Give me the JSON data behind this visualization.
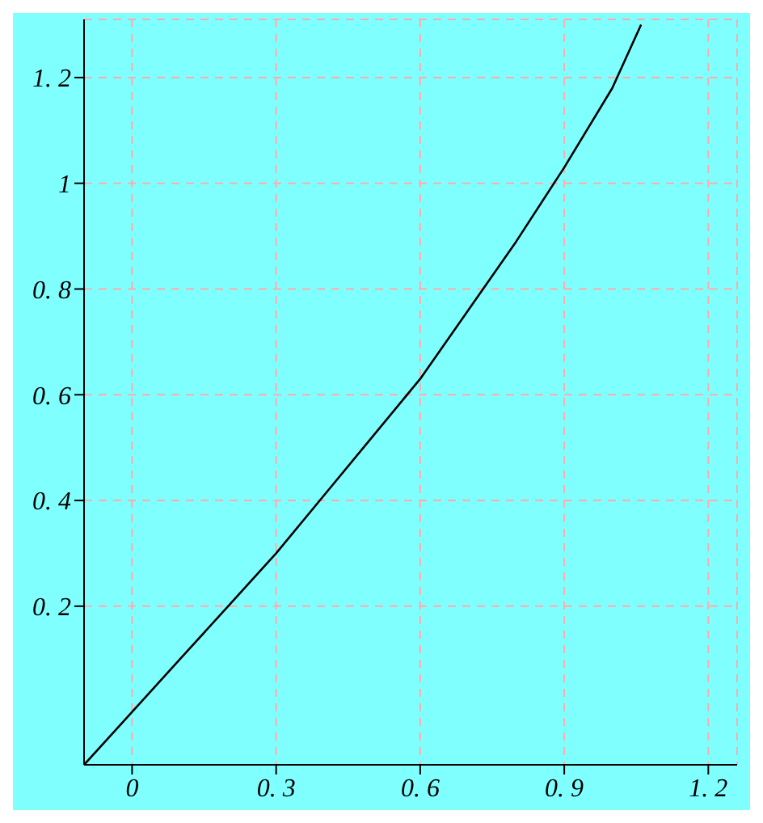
{
  "chart_data": {
    "type": "line",
    "x": [
      -0.1,
      0,
      0.1,
      0.2,
      0.3,
      0.4,
      0.5,
      0.6,
      0.7,
      0.8,
      0.9,
      1.0,
      1.06
    ],
    "series": [
      {
        "color": "#000000",
        "values": [
          -0.1,
          0,
          0.1,
          0.2,
          0.3,
          0.41,
          0.52,
          0.63,
          0.76,
          0.89,
          1.03,
          1.18,
          1.3
        ]
      }
    ],
    "xlim": [
      -0.1,
      1.26
    ],
    "ylim": [
      -0.1,
      1.31
    ],
    "xticks": [
      0,
      0.3,
      0.6,
      0.9,
      1.2
    ],
    "yticks": [
      0.2,
      0.4,
      0.6,
      0.8,
      1,
      1.2
    ],
    "grid": true,
    "marker": "none",
    "line_style": "solid"
  }
}
